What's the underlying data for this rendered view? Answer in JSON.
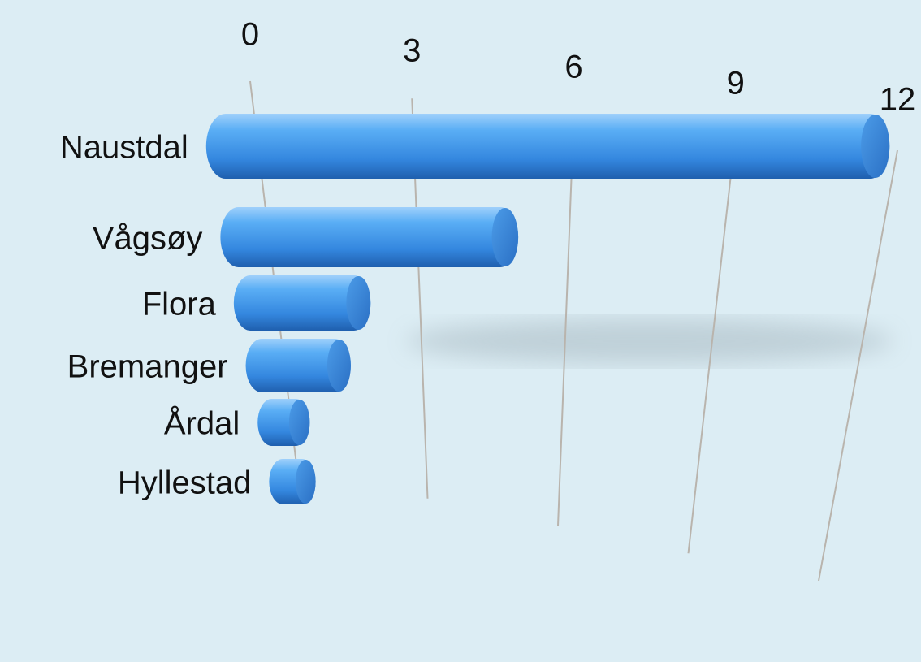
{
  "chart_data": {
    "type": "bar",
    "orientation": "horizontal",
    "categories": [
      "Naustdal",
      "Vågsøy",
      "Flora",
      "Bremanger",
      "Årdal",
      "Hyllestad"
    ],
    "values": [
      12,
      5,
      2,
      1.5,
      0.5,
      0.5
    ],
    "color": "#3d95e8",
    "xlim": [
      0,
      12
    ],
    "xticks": [
      0,
      3,
      6,
      9,
      12
    ],
    "grid": true
  }
}
